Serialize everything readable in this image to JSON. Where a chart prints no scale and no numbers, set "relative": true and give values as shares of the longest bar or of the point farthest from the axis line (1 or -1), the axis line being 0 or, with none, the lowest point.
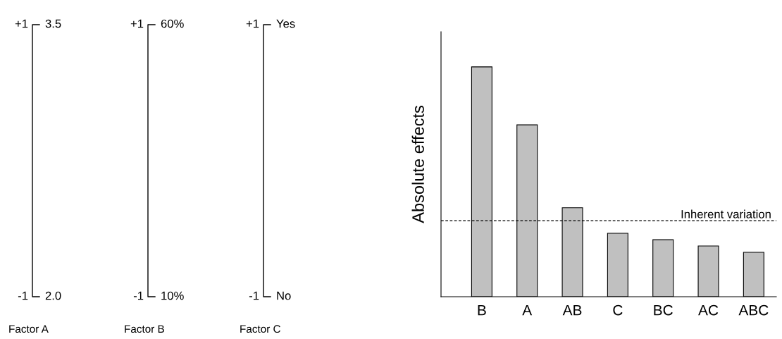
{
  "chart_data": [
    {
      "type": "other",
      "xlabel": "Factor A",
      "annotations": [
        "+1",
        "3.5",
        "-1",
        "2.0"
      ]
    },
    {
      "type": "other",
      "xlabel": "Factor B",
      "annotations": [
        "+1",
        "60%",
        "-1",
        "10%"
      ]
    },
    {
      "type": "other",
      "xlabel": "Factor C",
      "annotations": [
        "+1",
        "Yes",
        "-1",
        "No"
      ]
    },
    {
      "type": "bar",
      "relative": true,
      "ylabel": "Absolute effects",
      "categories": [
        "B",
        "A",
        "AB",
        "C",
        "BC",
        "AC",
        "ABC"
      ],
      "values": [
        1,
        0.748,
        0.387,
        0.276,
        0.248,
        0.221,
        0.193
      ],
      "color": "#c0c0c0",
      "grid": false,
      "ref_lines": [
        {
          "axis": "y",
          "value": 0.331,
          "label": "Inherent variation",
          "color": "#000000",
          "line_style": "dashed"
        }
      ]
    }
  ]
}
